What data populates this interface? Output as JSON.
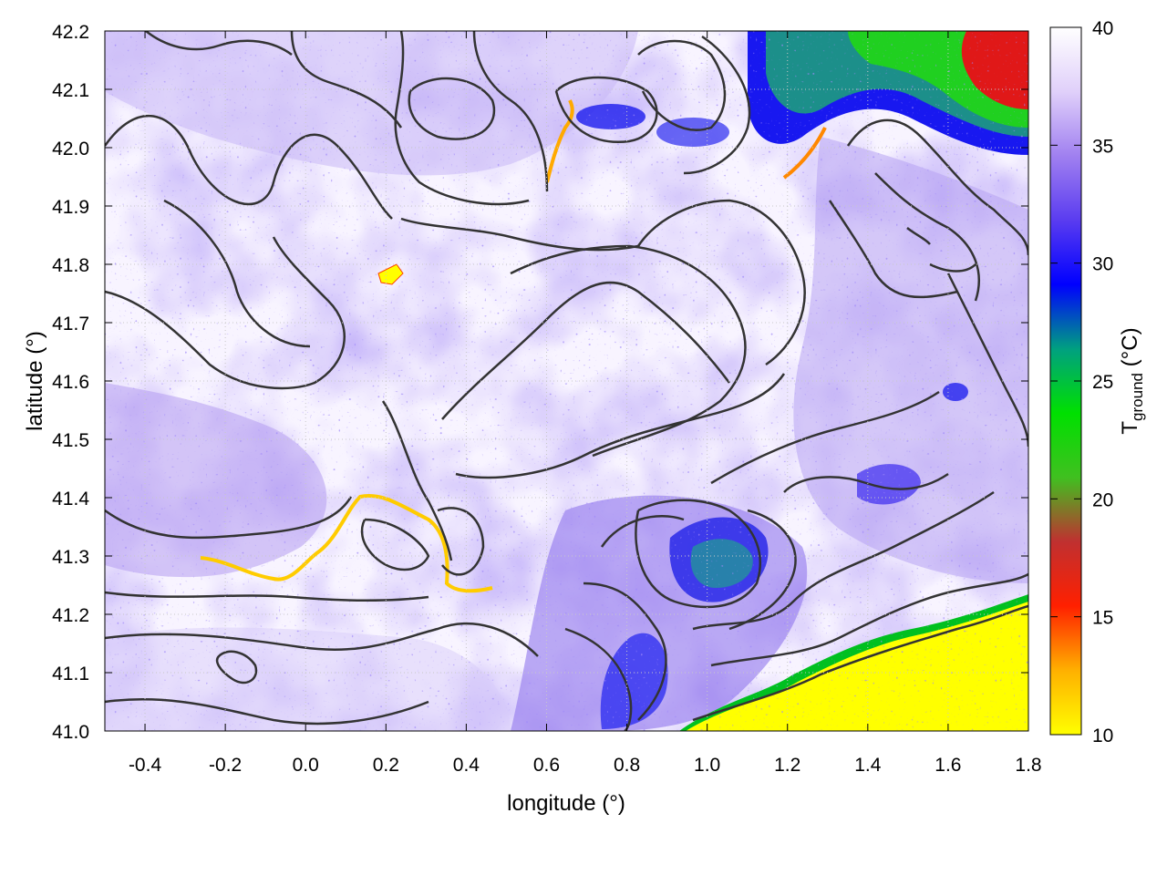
{
  "chart_data": {
    "type": "heatmap",
    "title": "",
    "xlabel": "longitude (°)",
    "ylabel": "latitude (°)",
    "xlim": [
      -0.5,
      1.8
    ],
    "ylim": [
      41.0,
      42.2
    ],
    "x_ticks": [
      "-0.4",
      "-0.2",
      "0.0",
      "0.2",
      "0.4",
      "0.6",
      "0.8",
      "1.0",
      "1.2",
      "1.4",
      "1.6",
      "1.8"
    ],
    "y_ticks": [
      "41.0",
      "41.1",
      "41.2",
      "41.3",
      "41.4",
      "41.5",
      "41.6",
      "41.7",
      "41.8",
      "41.9",
      "42.0",
      "42.1",
      "42.2"
    ],
    "grid": true,
    "colorbar": {
      "label_main": "T",
      "label_sub": "ground",
      "label_unit": " (°C)",
      "range": [
        10,
        40
      ],
      "ticks": [
        "10",
        "15",
        "20",
        "25",
        "30",
        "35",
        "40"
      ],
      "palette": [
        "#ffff00",
        "#ffb000",
        "#ff2000",
        "#c03030",
        "#40c020",
        "#00e000",
        "#00a080",
        "#0000ff",
        "#5a3cf0",
        "#a080f0",
        "#e0d0fa",
        "#ffffff"
      ]
    },
    "features": {
      "sea": {
        "description": "cold sea surface region along southeast coast",
        "value_c": 10
      },
      "hot_plains": {
        "value_c": 38
      },
      "cool_mountains_northeast": {
        "value_c_min": 18,
        "value_c_max": 28
      },
      "cool_hills_central_east": {
        "value_c": 31
      }
    }
  }
}
